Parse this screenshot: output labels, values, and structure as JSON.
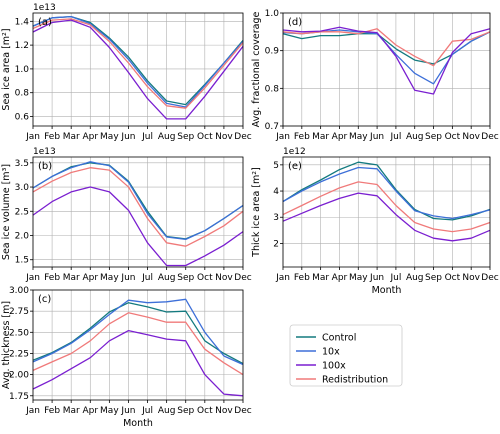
{
  "colors": {
    "Control": "#137a7f",
    "10x": "#3d6fd8",
    "100x": "#7a1fd0",
    "Redistribution": "#f07a7a"
  },
  "legend": [
    "Control",
    "10x",
    "100x",
    "Redistribution"
  ],
  "months": [
    "Jan",
    "Feb",
    "Mar",
    "Apr",
    "May",
    "Jun",
    "Jul",
    "Aug",
    "Sep",
    "Oct",
    "Nov",
    "Dec"
  ],
  "xlabel": "Month",
  "chart_data": [
    {
      "id": "a",
      "panel_label": "(a)",
      "type": "line",
      "ylabel": "Sea ice area [m²]",
      "exponent": "1e13",
      "ylim": [
        0.52,
        1.47
      ],
      "yticks": [
        "0.6",
        "0.8",
        "1.0",
        "1.2",
        "1.4"
      ],
      "ytick_values": [
        0.6,
        0.8,
        1.0,
        1.2,
        1.4
      ],
      "grid": true,
      "show_xlabel": false,
      "series": [
        {
          "name": "Control",
          "values": [
            1.36,
            1.43,
            1.44,
            1.39,
            1.26,
            1.1,
            0.9,
            0.73,
            0.7,
            0.87,
            1.05,
            1.24
          ]
        },
        {
          "name": "10x",
          "values": [
            1.36,
            1.43,
            1.44,
            1.38,
            1.25,
            1.08,
            0.88,
            0.71,
            0.68,
            0.86,
            1.05,
            1.23
          ]
        },
        {
          "name": "100x",
          "values": [
            1.31,
            1.39,
            1.41,
            1.35,
            1.18,
            0.97,
            0.75,
            0.58,
            0.58,
            0.77,
            0.98,
            1.19
          ]
        },
        {
          "name": "Redistribution",
          "values": [
            1.34,
            1.41,
            1.42,
            1.37,
            1.23,
            1.05,
            0.85,
            0.69,
            0.67,
            0.84,
            1.03,
            1.22
          ]
        }
      ]
    },
    {
      "id": "d",
      "panel_label": "(d)",
      "type": "line",
      "ylabel": "Avg. fractional coverage",
      "exponent": "",
      "ylim": [
        0.7,
        1.0
      ],
      "yticks": [
        "0.7",
        "0.8",
        "0.9",
        "1.0"
      ],
      "ytick_values": [
        0.7,
        0.8,
        0.9,
        1.0
      ],
      "grid": true,
      "show_xlabel": false,
      "series": [
        {
          "name": "Control",
          "values": [
            0.945,
            0.932,
            0.94,
            0.94,
            0.945,
            0.945,
            0.905,
            0.875,
            0.865,
            0.89,
            0.925,
            0.95
          ]
        },
        {
          "name": "10x",
          "values": [
            0.948,
            0.945,
            0.95,
            0.955,
            0.95,
            0.945,
            0.89,
            0.84,
            0.812,
            0.89,
            0.925,
            0.95
          ]
        },
        {
          "name": "100x",
          "values": [
            0.955,
            0.95,
            0.952,
            0.962,
            0.952,
            0.948,
            0.885,
            0.795,
            0.785,
            0.895,
            0.945,
            0.958
          ]
        },
        {
          "name": "Redistribution",
          "values": [
            0.95,
            0.945,
            0.95,
            0.95,
            0.945,
            0.958,
            0.915,
            0.885,
            0.86,
            0.925,
            0.93,
            0.95
          ]
        }
      ]
    },
    {
      "id": "b",
      "panel_label": "(b)",
      "type": "line",
      "ylabel": "Sea ice volume [m³]",
      "exponent": "1e13",
      "ylim": [
        1.35,
        3.62
      ],
      "yticks": [
        "1.5",
        "2.0",
        "2.5",
        "3.0",
        "3.5"
      ],
      "ytick_values": [
        1.5,
        2.0,
        2.5,
        3.0,
        3.5
      ],
      "grid": true,
      "show_xlabel": false,
      "series": [
        {
          "name": "Control",
          "values": [
            2.98,
            3.22,
            3.42,
            3.5,
            3.45,
            3.12,
            2.5,
            1.98,
            1.93,
            2.1,
            2.35,
            2.62
          ]
        },
        {
          "name": "10x",
          "values": [
            2.98,
            3.22,
            3.4,
            3.52,
            3.44,
            3.1,
            2.45,
            1.97,
            1.92,
            2.1,
            2.35,
            2.62
          ]
        },
        {
          "name": "100x",
          "values": [
            2.42,
            2.7,
            2.9,
            3.0,
            2.9,
            2.52,
            1.85,
            1.38,
            1.38,
            1.58,
            1.8,
            2.08
          ]
        },
        {
          "name": "Redistribution",
          "values": [
            2.9,
            3.12,
            3.3,
            3.4,
            3.35,
            3.0,
            2.35,
            1.85,
            1.78,
            1.98,
            2.2,
            2.5
          ]
        }
      ]
    },
    {
      "id": "e",
      "panel_label": "(e)",
      "type": "line",
      "ylabel": "Thick ice area [m²]",
      "exponent": "1e12",
      "ylim": [
        1.1,
        5.3
      ],
      "yticks": [
        "2",
        "3",
        "4",
        "5"
      ],
      "ytick_values": [
        2,
        3,
        4,
        5
      ],
      "grid": true,
      "show_xlabel": true,
      "series": [
        {
          "name": "Control",
          "values": [
            3.6,
            4.05,
            4.42,
            4.82,
            5.1,
            5.0,
            4.05,
            3.3,
            2.95,
            2.9,
            3.05,
            3.3
          ]
        },
        {
          "name": "10x",
          "values": [
            3.6,
            4.0,
            4.35,
            4.65,
            4.9,
            4.85,
            4.0,
            3.25,
            3.05,
            2.95,
            3.1,
            3.28
          ]
        },
        {
          "name": "100x",
          "values": [
            2.85,
            3.15,
            3.45,
            3.72,
            3.92,
            3.82,
            3.1,
            2.5,
            2.2,
            2.1,
            2.2,
            2.5
          ]
        },
        {
          "name": "Redistribution",
          "values": [
            3.1,
            3.45,
            3.8,
            4.12,
            4.35,
            4.25,
            3.45,
            2.8,
            2.55,
            2.45,
            2.55,
            2.8
          ]
        }
      ]
    },
    {
      "id": "c",
      "panel_label": "(c)",
      "type": "line",
      "ylabel": "Avg. thickness [m]",
      "exponent": "",
      "ylim": [
        1.7,
        3.0
      ],
      "yticks": [
        "1.75",
        "2.00",
        "2.25",
        "2.50",
        "2.75",
        "3.00"
      ],
      "ytick_values": [
        1.75,
        2.0,
        2.25,
        2.5,
        2.75,
        3.0
      ],
      "grid": true,
      "show_xlabel": true,
      "series": [
        {
          "name": "Control",
          "values": [
            2.17,
            2.26,
            2.38,
            2.55,
            2.74,
            2.85,
            2.8,
            2.74,
            2.75,
            2.4,
            2.25,
            2.13
          ]
        },
        {
          "name": "10x",
          "values": [
            2.15,
            2.25,
            2.37,
            2.53,
            2.71,
            2.88,
            2.85,
            2.86,
            2.89,
            2.5,
            2.22,
            2.12
          ]
        },
        {
          "name": "100x",
          "values": [
            1.83,
            1.94,
            2.07,
            2.2,
            2.4,
            2.52,
            2.47,
            2.42,
            2.4,
            2.0,
            1.77,
            1.75
          ]
        },
        {
          "name": "Redistribution",
          "values": [
            2.05,
            2.15,
            2.25,
            2.4,
            2.6,
            2.73,
            2.68,
            2.62,
            2.62,
            2.3,
            2.14,
            2.0
          ]
        }
      ]
    }
  ]
}
